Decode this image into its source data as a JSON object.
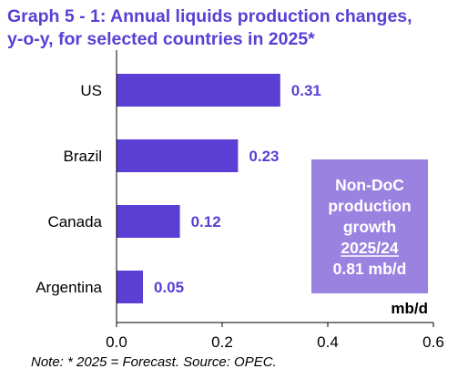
{
  "chart_data": {
    "type": "bar",
    "orientation": "horizontal",
    "title_line1": "Graph 5 - 1: Annual liquids production changes,",
    "title_line2": "y-o-y, for selected countries in 2025*",
    "categories": [
      "US",
      "Brazil",
      "Canada",
      "Argentina"
    ],
    "values": [
      0.31,
      0.23,
      0.12,
      0.05
    ],
    "value_labels": [
      "0.31",
      "0.23",
      "0.12",
      "0.05"
    ],
    "xlim": [
      0.0,
      0.6
    ],
    "xticks": [
      "0.0",
      "0.2",
      "0.4",
      "0.6"
    ],
    "xtick_values": [
      0.0,
      0.2,
      0.4,
      0.6
    ],
    "unit_label": "mb/d",
    "grid": false,
    "bar_color": "#5b3fd4",
    "annotation": {
      "line1": "Non-DoC",
      "line2": "production",
      "line3": "growth",
      "line4": "2025/24",
      "line5": "0.81 mb/d",
      "color": "#9a82e0"
    },
    "note": "Note: * 2025 = Forecast. Source: OPEC."
  }
}
